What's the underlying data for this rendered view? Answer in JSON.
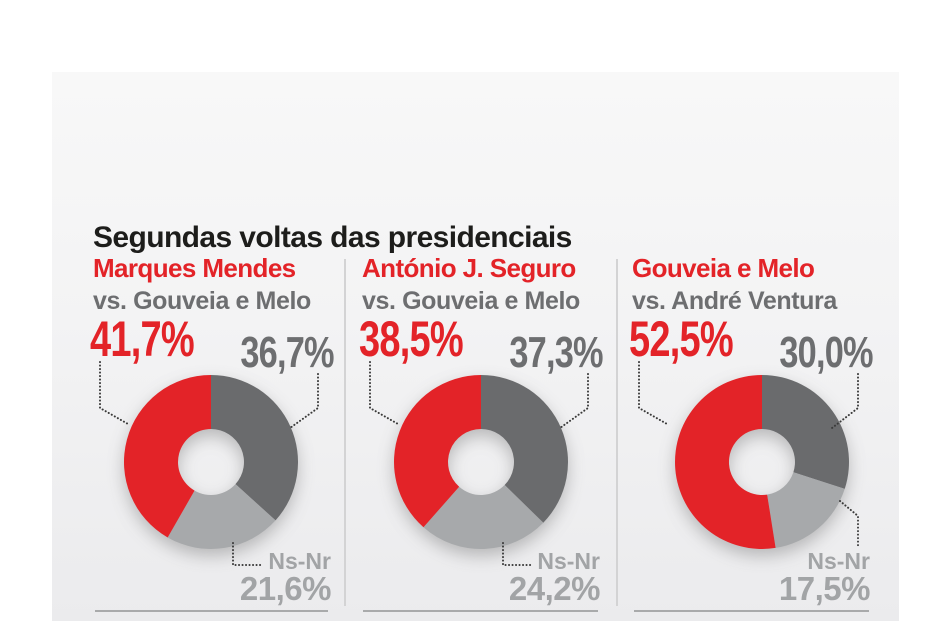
{
  "title": "Segundas voltas das presidenciais",
  "nsnr_label": "Ns-Nr",
  "colors": {
    "candidate_red": "#e32328",
    "opponent_gray": "#6a6b6d",
    "nsnr_gray": "#a7a9ab",
    "title_black": "#1d1d1b",
    "text_gray": "#6d6e70",
    "nsnr_text_gray": "#a2a4a6"
  },
  "panels": [
    {
      "candidate_name": "Marques Mendes",
      "opponent_line": "vs. Gouveia e Melo",
      "candidate_pct": "41,7%",
      "opponent_pct": "36,7%",
      "nsnr_pct": "21,6%"
    },
    {
      "candidate_name": "António J. Seguro",
      "opponent_line": "vs. Gouveia e Melo",
      "candidate_pct": "38,5%",
      "opponent_pct": "37,3%",
      "nsnr_pct": "24,2%"
    },
    {
      "candidate_name": "Gouveia e Melo",
      "opponent_line": "vs. André Ventura",
      "candidate_pct": "52,5%",
      "opponent_pct": "30,0%",
      "nsnr_pct": "17,5%"
    }
  ],
  "chart_data": [
    {
      "type": "pie",
      "subtype": "donut",
      "title": "Marques Mendes vs. Gouveia e Melo",
      "slices": [
        {
          "label": "Marques Mendes",
          "value": 41.7,
          "display": "41,7%",
          "color": "#e32328"
        },
        {
          "label": "Gouveia e Melo",
          "value": 36.7,
          "display": "36,7%",
          "color": "#6a6b6d"
        },
        {
          "label": "Ns-Nr",
          "value": 21.6,
          "display": "21,6%",
          "color": "#a7a9ab"
        }
      ]
    },
    {
      "type": "pie",
      "subtype": "donut",
      "title": "António J. Seguro vs. Gouveia e Melo",
      "slices": [
        {
          "label": "António J. Seguro",
          "value": 38.5,
          "display": "38,5%",
          "color": "#e32328"
        },
        {
          "label": "Gouveia e Melo",
          "value": 37.3,
          "display": "37,3%",
          "color": "#6a6b6d"
        },
        {
          "label": "Ns-Nr",
          "value": 24.2,
          "display": "24,2%",
          "color": "#a7a9ab"
        }
      ]
    },
    {
      "type": "pie",
      "subtype": "donut",
      "title": "Gouveia e Melo vs. André Ventura",
      "slices": [
        {
          "label": "Gouveia e Melo",
          "value": 52.5,
          "display": "52,5%",
          "color": "#e32328"
        },
        {
          "label": "André Ventura",
          "value": 30.0,
          "display": "30,0%",
          "color": "#6a6b6d"
        },
        {
          "label": "Ns-Nr",
          "value": 17.5,
          "display": "17,5%",
          "color": "#a7a9ab"
        }
      ]
    }
  ]
}
